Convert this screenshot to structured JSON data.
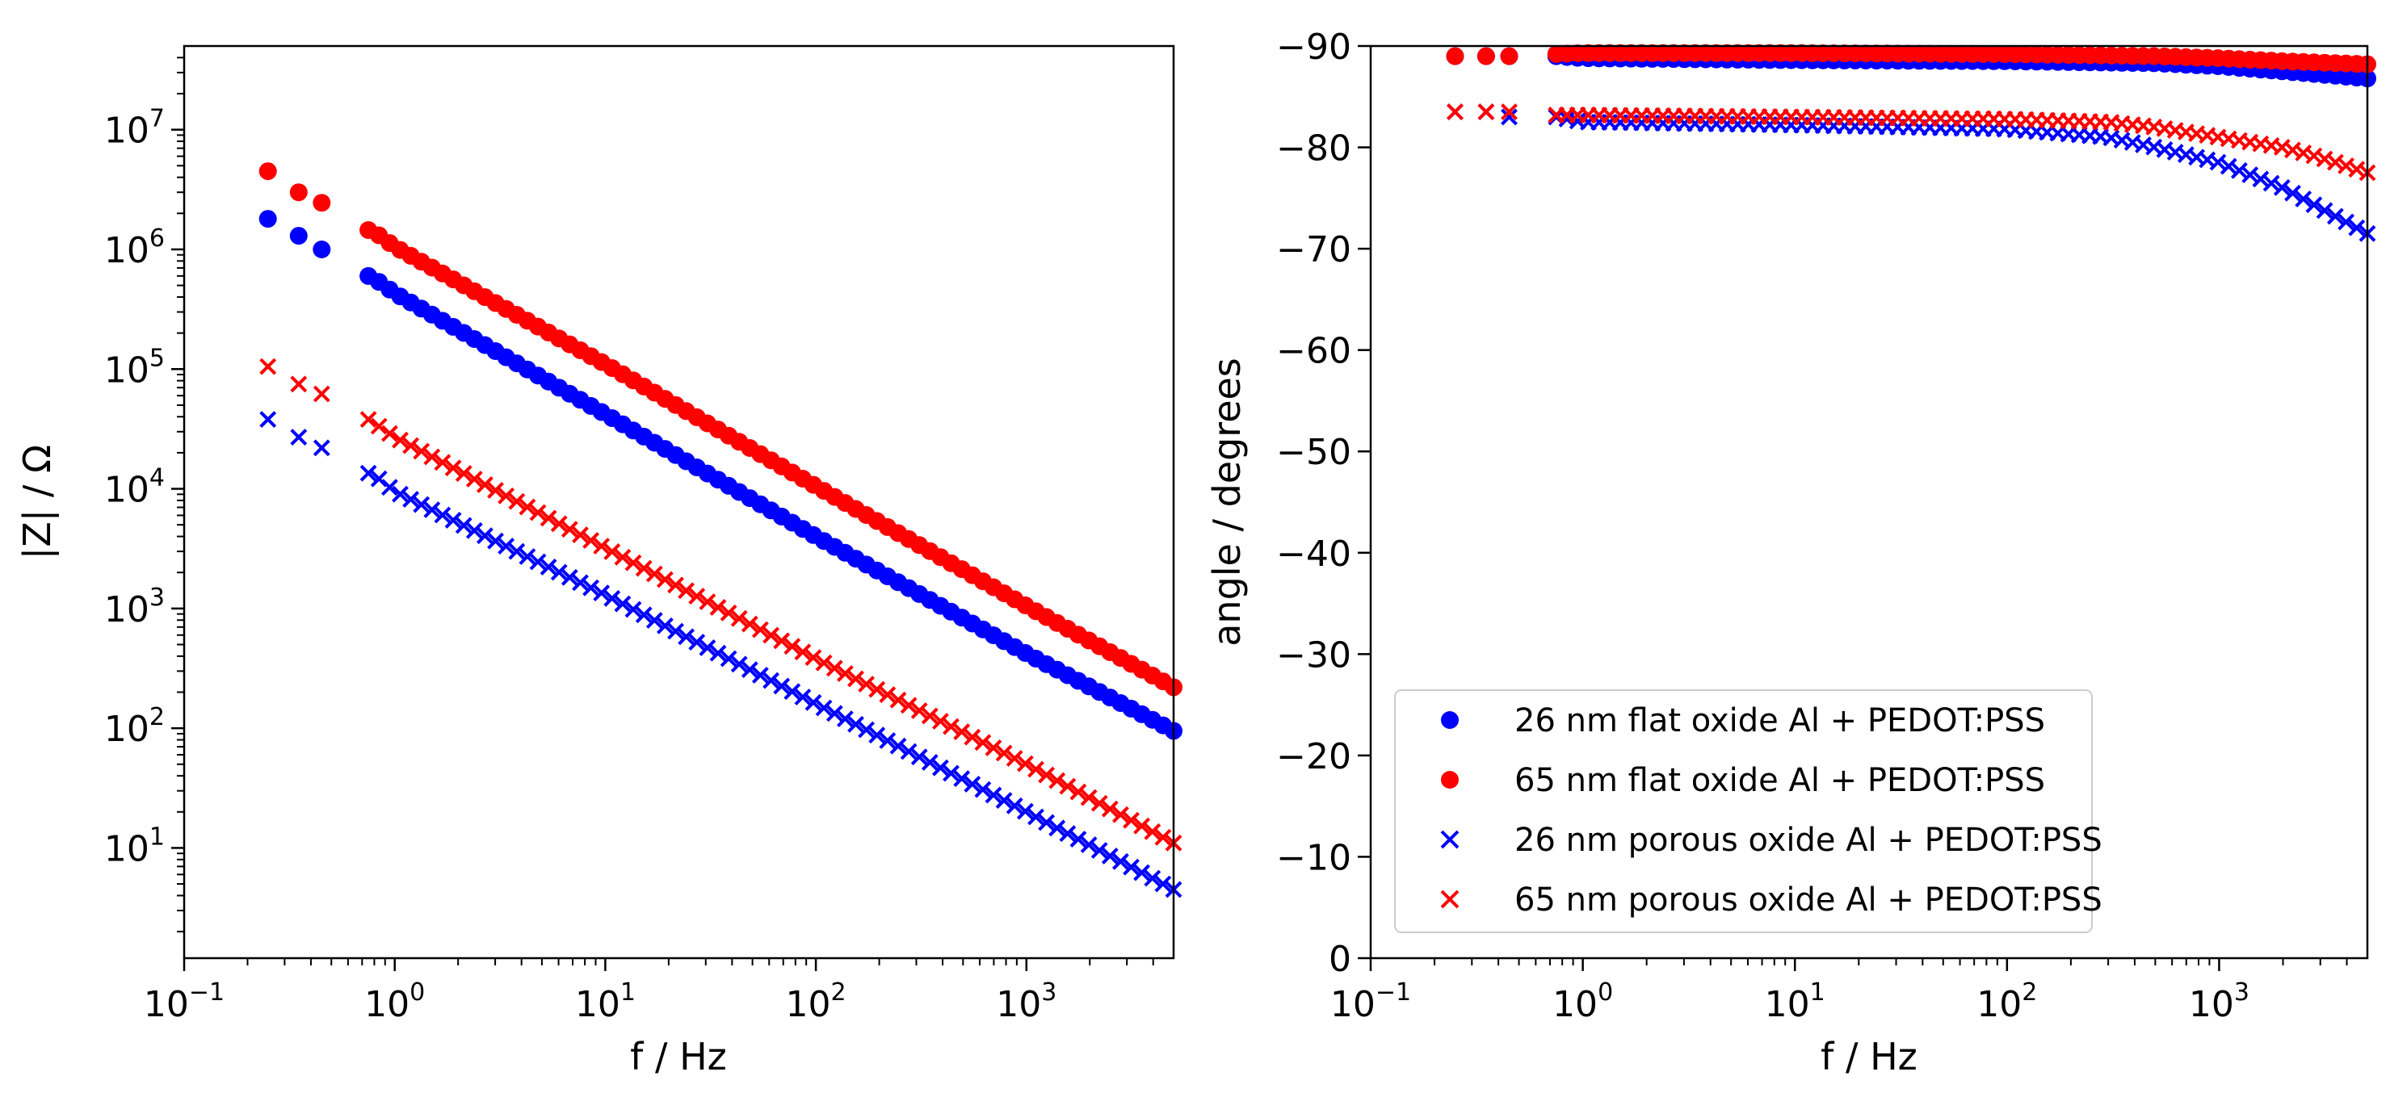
{
  "chart_data": [
    {
      "type": "scatter",
      "id": "impedance",
      "xscale": "log",
      "yscale": "log",
      "xlabel": "f / Hz",
      "ylabel": "|Z| / Ω",
      "xlim": [
        0.1,
        5000
      ],
      "ylim": [
        1.2,
        50000000
      ],
      "xticks": [
        {
          "value": 0.1,
          "base": "10",
          "exp": "−1"
        },
        {
          "value": 1,
          "base": "10",
          "exp": "0"
        },
        {
          "value": 10,
          "base": "10",
          "exp": "1"
        },
        {
          "value": 100,
          "base": "10",
          "exp": "2"
        },
        {
          "value": 1000,
          "base": "10",
          "exp": "3"
        }
      ],
      "yticks": [
        {
          "value": 10,
          "base": "10",
          "exp": "1"
        },
        {
          "value": 100,
          "base": "10",
          "exp": "2"
        },
        {
          "value": 1000,
          "base": "10",
          "exp": "3"
        },
        {
          "value": 10000,
          "base": "10",
          "exp": "4"
        },
        {
          "value": 100000,
          "base": "10",
          "exp": "5"
        },
        {
          "value": 1000000,
          "base": "10",
          "exp": "6"
        },
        {
          "value": 10000000,
          "base": "10",
          "exp": "7"
        }
      ],
      "series": [
        {
          "name": "26 nm flat oxide Al + PEDOT:PSS",
          "marker": "o",
          "color": "#0000ff",
          "x": [
            0.25,
            0.35,
            0.45,
            0.75,
            0.85,
            1.0,
            10,
            100,
            1000,
            5000
          ],
          "y": [
            1800000,
            1300000,
            1000000,
            600000,
            530000,
            430000,
            42000,
            4000,
            420,
            95
          ]
        },
        {
          "name": "65 nm flat oxide Al + PEDOT:PSS",
          "marker": "o",
          "color": "#ff0000",
          "x": [
            0.25,
            0.35,
            0.45,
            0.75,
            0.85,
            1.0,
            10,
            100,
            1000,
            5000
          ],
          "y": [
            4500000,
            3000000,
            2450000,
            1450000,
            1300000,
            1050000,
            110000,
            10500,
            1050,
            220
          ]
        },
        {
          "name": "26 nm porous oxide Al + PEDOT:PSS",
          "marker": "x",
          "color": "#0000ff",
          "x": [
            0.25,
            0.35,
            0.45,
            0.75,
            0.85,
            1.0,
            10,
            100,
            1000,
            5000
          ],
          "y": [
            38000,
            27000,
            22000,
            13500,
            12000,
            9500,
            1300,
            160,
            20,
            4.5
          ]
        },
        {
          "name": "65 nm porous oxide Al + PEDOT:PSS",
          "marker": "x",
          "color": "#ff0000",
          "x": [
            0.25,
            0.35,
            0.45,
            0.75,
            0.85,
            1.0,
            10,
            100,
            1000,
            5000
          ],
          "y": [
            105000,
            75000,
            62000,
            38000,
            33000,
            27000,
            3200,
            380,
            50,
            11
          ]
        }
      ]
    },
    {
      "type": "scatter",
      "id": "phase",
      "xscale": "log",
      "yscale": "linear",
      "yinverted": true,
      "xlabel": "f / Hz",
      "ylabel": "angle / degrees",
      "xlim": [
        0.1,
        5000
      ],
      "ylim": [
        0,
        -90
      ],
      "xticks": [
        {
          "value": 0.1,
          "base": "10",
          "exp": "−1"
        },
        {
          "value": 1,
          "base": "10",
          "exp": "0"
        },
        {
          "value": 10,
          "base": "10",
          "exp": "1"
        },
        {
          "value": 100,
          "base": "10",
          "exp": "2"
        },
        {
          "value": 1000,
          "base": "10",
          "exp": "3"
        }
      ],
      "yticks": [
        {
          "value": -90,
          "label": "−90"
        },
        {
          "value": -80,
          "label": "−80"
        },
        {
          "value": -70,
          "label": "−70"
        },
        {
          "value": -60,
          "label": "−60"
        },
        {
          "value": -50,
          "label": "−50"
        },
        {
          "value": -40,
          "label": "−40"
        },
        {
          "value": -30,
          "label": "−30"
        },
        {
          "value": -20,
          "label": "−20"
        },
        {
          "value": -10,
          "label": "−10"
        },
        {
          "value": 0,
          "label": "0"
        }
      ],
      "legend_loc": "lower-left",
      "series": [
        {
          "name": "26 nm flat oxide Al + PEDOT:PSS",
          "marker": "o",
          "color": "#0000ff",
          "x": [
            0.25,
            0.35,
            0.45,
            0.75,
            1,
            10,
            100,
            500,
            1000,
            2000,
            5000
          ],
          "y": [
            -89,
            -89,
            -89,
            -89,
            -88.8,
            -88.6,
            -88.5,
            -88.3,
            -88,
            -87.5,
            -86.8
          ]
        },
        {
          "name": "65 nm flat oxide Al + PEDOT:PSS",
          "marker": "o",
          "color": "#ff0000",
          "x": [
            0.25,
            0.35,
            0.45,
            0.75,
            1,
            10,
            100,
            500,
            1000,
            2000,
            5000
          ],
          "y": [
            -89,
            -89,
            -89,
            -89.2,
            -89.3,
            -89.3,
            -89.2,
            -89,
            -88.8,
            -88.5,
            -88.2
          ]
        },
        {
          "name": "26 nm porous oxide Al + PEDOT:PSS",
          "marker": "x",
          "color": "#0000ff",
          "x": [
            0.25,
            0.35,
            0.45,
            0.75,
            1,
            10,
            100,
            300,
            500,
            1000,
            2000,
            3000,
            5000
          ],
          "y": [
            -83.5,
            -83.5,
            -83,
            -83,
            -82.5,
            -82.2,
            -81.8,
            -81,
            -80,
            -78.5,
            -76,
            -74,
            -71.5
          ]
        },
        {
          "name": "65 nm porous oxide Al + PEDOT:PSS",
          "marker": "x",
          "color": "#ff0000",
          "x": [
            0.25,
            0.35,
            0.45,
            0.75,
            1,
            10,
            100,
            300,
            500,
            1000,
            2000,
            3000,
            5000
          ],
          "y": [
            -83.5,
            -83.5,
            -83.5,
            -83.2,
            -83.2,
            -83,
            -82.8,
            -82.5,
            -82,
            -81,
            -80,
            -79,
            -77.5
          ]
        }
      ]
    }
  ]
}
